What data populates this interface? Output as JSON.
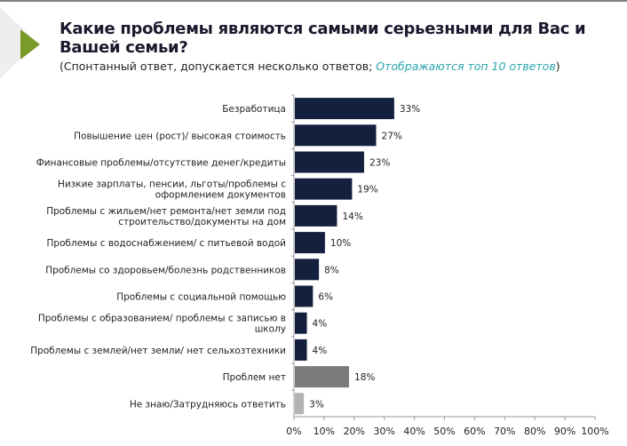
{
  "chart_data": {
    "type": "bar",
    "orientation": "horizontal",
    "title": "Какие проблемы являются самыми серьезными для Вас и Вашей семьи?",
    "subtitle_prefix": "(Спонтанный ответ, допускается несколько ответов; ",
    "subtitle_highlight": "Отображаются топ 10 ответов",
    "subtitle_suffix": ")",
    "categories": [
      [
        "Безработица"
      ],
      [
        "Повышение цен (рост)/ высокая стоимость"
      ],
      [
        "Финансовые проблемы/отсутствие денег/кредиты"
      ],
      [
        "Низкие зарплаты, пенсии, льготы/проблемы с",
        "оформлением документов"
      ],
      [
        "Проблемы с жильем/нет ремонта/нет земли под",
        "строительство/документы на дом"
      ],
      [
        "Проблемы с водоснабжением/ с питьевой водой"
      ],
      [
        "Проблемы со здоровьем/болезнь родственников"
      ],
      [
        "Проблемы с социальной помощью"
      ],
      [
        "Проблемы с образованием/ проблемы с записью в",
        "школу"
      ],
      [
        "Проблемы с землей/нет земли/ нет сельхозтехники"
      ],
      [
        "Проблем нет"
      ],
      [
        "Не знаю/Затрудняюсь ответить"
      ]
    ],
    "values": [
      33,
      27,
      23,
      19,
      14,
      10,
      8,
      6,
      4,
      4,
      18,
      3
    ],
    "value_labels": [
      "33%",
      "27%",
      "23%",
      "19%",
      "14%",
      "10%",
      "8%",
      "6%",
      "4%",
      "4%",
      "18%",
      "3%"
    ],
    "bar_colors": [
      "#13213f",
      "#13213f",
      "#13213f",
      "#13213f",
      "#13213f",
      "#13213f",
      "#13213f",
      "#13213f",
      "#13213f",
      "#13213f",
      "#7b7b7b",
      "#b3b3b3"
    ],
    "xlim": [
      0,
      100
    ],
    "xticks": [
      "0%",
      "10%",
      "20%",
      "30%",
      "40%",
      "50%",
      "60%",
      "70%",
      "80%",
      "90%",
      "100%"
    ],
    "grid": false,
    "legend": "none"
  },
  "colors": {
    "accent": "#7a9a2a",
    "highlight_text": "#2ba6b0"
  }
}
